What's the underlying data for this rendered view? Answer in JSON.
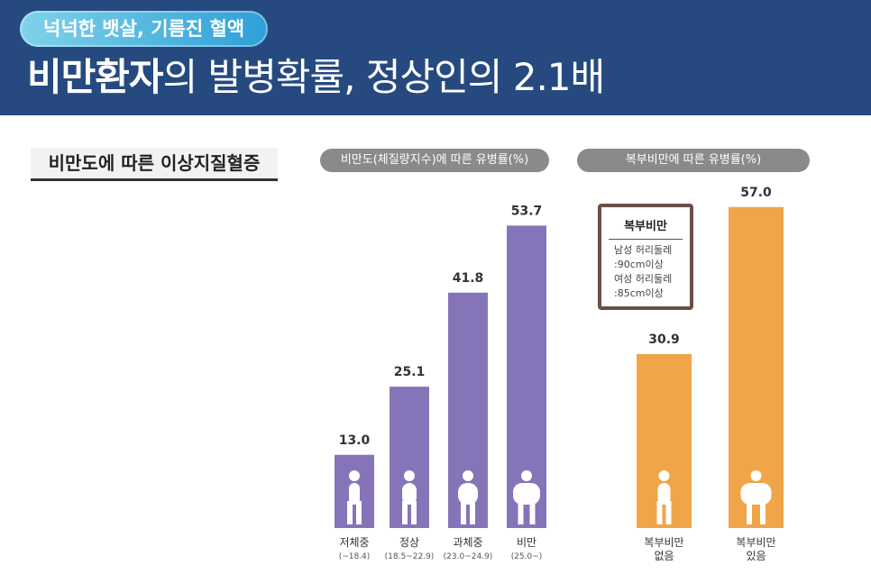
{
  "header": {
    "tag": "넉넉한 뱃살, 기름진 혈액",
    "headline_strong": "비만환자",
    "headline_rest": "의 발병확률, 정상인의 2.1배"
  },
  "section_title": "비만도에 따른 이상지질혈증",
  "panels": {
    "left_label": "비만도(체질량지수)에 따른 유병률(%)",
    "right_label": "복부비만에 따른 유병률(%)"
  },
  "note": {
    "title": "복부비만",
    "lines": [
      "남성 허리둘레",
      ":90cm이상",
      "여성 허리둘레",
      ":85cm이상"
    ]
  },
  "colors": {
    "purple": "#8575b8",
    "orange": "#f0a548",
    "header": "#264a80"
  },
  "chart_data": [
    {
      "type": "bar",
      "title": "비만도(체질량지수)에 따른 유병률(%)",
      "categories": [
        "저체중",
        "정상",
        "과체중",
        "비만"
      ],
      "category_ranges": [
        "(~18.4)",
        "(18.5~22.9)",
        "(23.0~24.9)",
        "(25.0~)"
      ],
      "values": [
        13.0,
        25.1,
        41.8,
        53.7
      ],
      "value_labels": [
        "13.0",
        "25.1",
        "41.8",
        "53.7"
      ],
      "icons": [
        "underweight-person-icon",
        "normal-person-icon",
        "overweight-person-icon",
        "obese-person-icon"
      ],
      "color": "#8575b8",
      "ylim": [
        0,
        60
      ]
    },
    {
      "type": "bar",
      "title": "복부비만에 따른 유병률(%)",
      "categories": [
        "복부비만 없음",
        "복부비만 있음"
      ],
      "category_lines": [
        [
          "복부비만",
          "없음"
        ],
        [
          "복부비만",
          "있음"
        ]
      ],
      "values": [
        30.9,
        57.0
      ],
      "value_labels": [
        "30.9",
        "57.0"
      ],
      "icons": [
        "slim-waist-person-icon",
        "large-waist-person-icon"
      ],
      "color": "#f0a548",
      "ylim": [
        0,
        60
      ]
    }
  ]
}
